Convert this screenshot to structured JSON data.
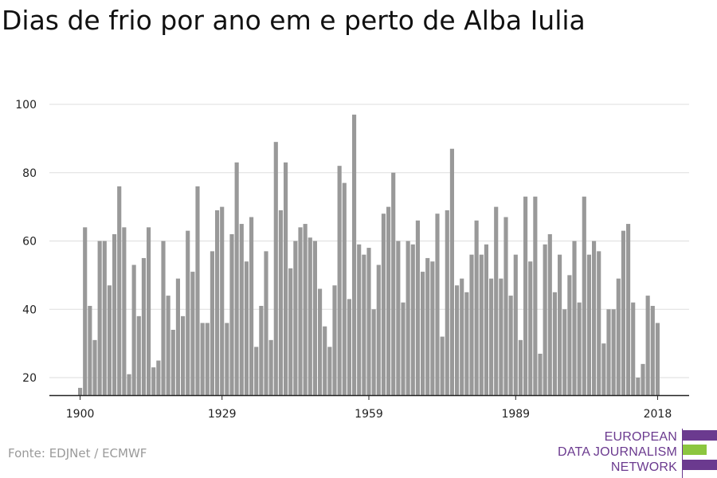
{
  "title": "Dias de frio por ano em e perto de Alba Iulia",
  "source": "Fonte: EDJNet / ECMWF",
  "logo": {
    "lines": [
      "EUROPEAN",
      "DATA JOURNALISM",
      "NETWORK"
    ],
    "colors": {
      "purple": "#6b3a8f",
      "green": "#8cc63f"
    }
  },
  "chart_data": {
    "type": "bar",
    "title": "Dias de frio por ano em e perto de Alba Iulia",
    "xlabel": "",
    "ylabel": "",
    "bar_color": "#999999",
    "grid": true,
    "ylim": [
      15,
      100
    ],
    "yticks": [
      20,
      40,
      60,
      80,
      100
    ],
    "xticks": [
      1900,
      1929,
      1959,
      1989,
      2018
    ],
    "x": [
      1900,
      1901,
      1902,
      1903,
      1904,
      1905,
      1906,
      1907,
      1908,
      1909,
      1910,
      1911,
      1912,
      1913,
      1914,
      1915,
      1916,
      1917,
      1918,
      1919,
      1920,
      1921,
      1922,
      1923,
      1924,
      1925,
      1926,
      1927,
      1928,
      1929,
      1930,
      1931,
      1932,
      1933,
      1934,
      1935,
      1936,
      1937,
      1938,
      1939,
      1940,
      1941,
      1942,
      1943,
      1944,
      1945,
      1946,
      1947,
      1948,
      1949,
      1950,
      1951,
      1952,
      1953,
      1954,
      1955,
      1956,
      1957,
      1958,
      1959,
      1960,
      1961,
      1962,
      1963,
      1964,
      1965,
      1966,
      1967,
      1968,
      1969,
      1970,
      1971,
      1972,
      1973,
      1974,
      1975,
      1976,
      1977,
      1978,
      1979,
      1980,
      1981,
      1982,
      1983,
      1984,
      1985,
      1986,
      1987,
      1988,
      1989,
      1990,
      1991,
      1992,
      1993,
      1994,
      1995,
      1996,
      1997,
      1998,
      1999,
      2000,
      2001,
      2002,
      2003,
      2004,
      2005,
      2006,
      2007,
      2008,
      2009,
      2010,
      2011,
      2012,
      2013,
      2014,
      2015,
      2016,
      2017,
      2018
    ],
    "values": [
      17,
      64,
      41,
      31,
      60,
      60,
      47,
      62,
      76,
      64,
      21,
      53,
      38,
      55,
      64,
      23,
      25,
      60,
      44,
      34,
      49,
      38,
      63,
      51,
      76,
      36,
      36,
      57,
      69,
      70,
      36,
      62,
      83,
      65,
      54,
      67,
      29,
      41,
      57,
      31,
      89,
      69,
      83,
      52,
      60,
      64,
      65,
      61,
      60,
      46,
      35,
      29,
      47,
      82,
      77,
      43,
      97,
      59,
      56,
      58,
      40,
      53,
      68,
      70,
      80,
      60,
      42,
      60,
      59,
      66,
      51,
      55,
      54,
      68,
      32,
      69,
      87,
      47,
      49,
      45,
      56,
      66,
      56,
      59,
      49,
      70,
      49,
      67,
      44,
      56,
      31,
      73,
      54,
      73,
      27,
      59,
      62,
      45,
      56,
      40,
      50,
      60,
      42,
      73,
      56,
      60,
      57,
      30,
      40,
      40,
      49,
      63,
      65,
      42,
      20,
      24,
      44,
      41,
      36
    ]
  }
}
